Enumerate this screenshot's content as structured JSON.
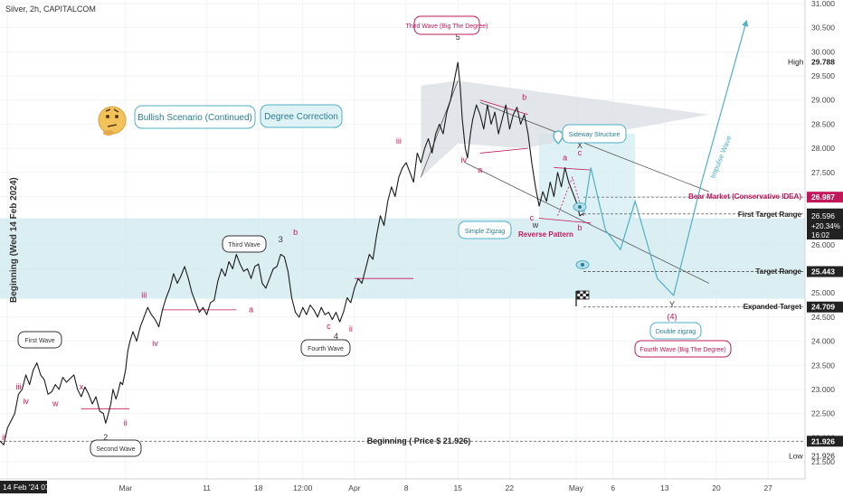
{
  "symbol_line": "Silver, 2h, CAPITALCOM",
  "y_axis_title": "Beginning (Wed 14 Feb 2024)",
  "chart_data": {
    "type": "line",
    "price_ticks": [
      31.0,
      30.5,
      30.0,
      29.5,
      29.0,
      28.5,
      28.0,
      27.5,
      27.0,
      26.5,
      26.0,
      25.5,
      25.0,
      24.5,
      24.0,
      23.5,
      23.0,
      22.5,
      22.0,
      21.5
    ],
    "price_tick_labels": [
      "31.000",
      "30.500",
      "30.000",
      "29.500",
      "29.000",
      "28.500",
      "28.000",
      "27.500",
      "27.000",
      "26.500",
      "26.000",
      "25.500",
      "25.000",
      "24.500",
      "24.000",
      "23.500",
      "23.000",
      "22.500",
      "22.000",
      "21.500"
    ],
    "ylim": [
      21.3,
      31.2
    ],
    "x_ticks": [
      {
        "label": "Feb '24",
        "day": 14
      },
      {
        "label": "Mar",
        "day": 30
      },
      {
        "label": "11",
        "day": 41
      },
      {
        "label": "18",
        "day": 48
      },
      {
        "label": "12:00",
        "day": 54
      },
      {
        "label": "Apr",
        "day": 61
      },
      {
        "label": "8",
        "day": 68
      },
      {
        "label": "15",
        "day": 75
      },
      {
        "label": "22",
        "day": 82
      },
      {
        "label": "May",
        "day": 91
      },
      {
        "label": "6",
        "day": 96
      },
      {
        "label": "13",
        "day": 103
      },
      {
        "label": "20",
        "day": 110
      },
      {
        "label": "27",
        "day": 117
      }
    ],
    "cursor_x_label": "14 Feb '24  07:00",
    "xlim": [
      13,
      122
    ],
    "price_path": [
      [
        13,
        21.93
      ],
      [
        13.5,
        21.85
      ],
      [
        14,
        22.2
      ],
      [
        15,
        22.5
      ],
      [
        15.5,
        22.9
      ],
      [
        16,
        23.0
      ],
      [
        16.5,
        23.3
      ],
      [
        17,
        23.1
      ],
      [
        17.5,
        23.4
      ],
      [
        18,
        23.55
      ],
      [
        18.5,
        23.3
      ],
      [
        19,
        23.2
      ],
      [
        19.5,
        22.9
      ],
      [
        20,
        22.95
      ],
      [
        20.5,
        23.1
      ],
      [
        21,
        23.0
      ],
      [
        21.5,
        23.25
      ],
      [
        22,
        23.15
      ],
      [
        23,
        23.3
      ],
      [
        23.5,
        23.0
      ],
      [
        24,
        22.85
      ],
      [
        24.5,
        23.05
      ],
      [
        25,
        22.9
      ],
      [
        25.5,
        22.7
      ],
      [
        26,
        22.85
      ],
      [
        26.5,
        22.55
      ],
      [
        27,
        22.5
      ],
      [
        27.3,
        22.3
      ],
      [
        27.6,
        22.45
      ],
      [
        28,
        22.7
      ],
      [
        28.3,
        23.0
      ],
      [
        28.7,
        22.8
      ],
      [
        29,
        22.95
      ],
      [
        29.3,
        23.15
      ],
      [
        29.6,
        23.1
      ],
      [
        30,
        23.4
      ],
      [
        30.3,
        23.8
      ],
      [
        30.6,
        24.0
      ],
      [
        31,
        24.2
      ],
      [
        31.5,
        24.0
      ],
      [
        32,
        24.3
      ],
      [
        32.5,
        24.5
      ],
      [
        33,
        24.7
      ],
      [
        33.5,
        24.55
      ],
      [
        34,
        24.45
      ],
      [
        34.5,
        24.3
      ],
      [
        35,
        24.65
      ],
      [
        35.5,
        24.9
      ],
      [
        36,
        25.1
      ],
      [
        36.5,
        25.4
      ],
      [
        37,
        25.2
      ],
      [
        37.5,
        25.35
      ],
      [
        38,
        25.55
      ],
      [
        38.5,
        25.3
      ],
      [
        39,
        25.0
      ],
      [
        39.5,
        24.8
      ],
      [
        40,
        24.6
      ],
      [
        40.5,
        24.7
      ],
      [
        41,
        24.55
      ],
      [
        41.5,
        24.8
      ],
      [
        42,
        24.85
      ],
      [
        42.5,
        25.25
      ],
      [
        43,
        25.5
      ],
      [
        43.5,
        25.35
      ],
      [
        44,
        25.65
      ],
      [
        44.5,
        25.5
      ],
      [
        45,
        25.8
      ],
      [
        45.5,
        25.6
      ],
      [
        46,
        25.45
      ],
      [
        46.5,
        25.5
      ],
      [
        47,
        25.3
      ],
      [
        47.5,
        25.55
      ],
      [
        48,
        25.6
      ],
      [
        48.5,
        25.2
      ],
      [
        49,
        25.1
      ],
      [
        49.5,
        25.3
      ],
      [
        50,
        25.5
      ],
      [
        50.5,
        25.55
      ],
      [
        51,
        25.8
      ],
      [
        51.5,
        25.75
      ],
      [
        52,
        25.45
      ],
      [
        52.5,
        24.9
      ],
      [
        53,
        24.6
      ],
      [
        53.5,
        24.5
      ],
      [
        54,
        24.7
      ],
      [
        54.5,
        24.55
      ],
      [
        55,
        24.75
      ],
      [
        55.5,
        24.65
      ],
      [
        56,
        24.5
      ],
      [
        56.5,
        24.7
      ],
      [
        57,
        24.55
      ],
      [
        57.5,
        24.6
      ],
      [
        58,
        24.45
      ],
      [
        58.5,
        24.6
      ],
      [
        59,
        24.4
      ],
      [
        59.5,
        24.6
      ],
      [
        60,
        24.9
      ],
      [
        60.5,
        24.8
      ],
      [
        61,
        25.1
      ],
      [
        61.5,
        25.3
      ],
      [
        62,
        25.2
      ],
      [
        62.5,
        25.5
      ],
      [
        63,
        25.8
      ],
      [
        63.5,
        25.7
      ],
      [
        64,
        26.2
      ],
      [
        64.5,
        26.6
      ],
      [
        65,
        26.4
      ],
      [
        65.5,
        26.9
      ],
      [
        66,
        27.2
      ],
      [
        66.5,
        27.0
      ],
      [
        67,
        27.4
      ],
      [
        67.5,
        27.6
      ],
      [
        68,
        27.7
      ],
      [
        68.5,
        27.5
      ],
      [
        69,
        27.3
      ],
      [
        69.5,
        27.9
      ],
      [
        70,
        27.7
      ],
      [
        70.5,
        28.0
      ],
      [
        71,
        28.2
      ],
      [
        71.5,
        27.9
      ],
      [
        72,
        28.3
      ],
      [
        72.5,
        28.5
      ],
      [
        73,
        28.3
      ],
      [
        73.5,
        28.75
      ],
      [
        74,
        29.0
      ],
      [
        74.5,
        29.4
      ],
      [
        75,
        29.78
      ],
      [
        75.3,
        29.3
      ],
      [
        75.6,
        28.6
      ],
      [
        76,
        28.0
      ],
      [
        76.3,
        27.8
      ],
      [
        76.7,
        28.3
      ],
      [
        77,
        28.6
      ],
      [
        77.5,
        28.9
      ],
      [
        78,
        28.7
      ],
      [
        78.5,
        28.4
      ],
      [
        79,
        28.9
      ],
      [
        79.5,
        28.5
      ],
      [
        80,
        28.75
      ],
      [
        80.5,
        28.3
      ],
      [
        81,
        28.6
      ],
      [
        81.5,
        28.9
      ],
      [
        82,
        28.4
      ],
      [
        82.5,
        28.7
      ],
      [
        83,
        28.85
      ],
      [
        83.5,
        28.5
      ],
      [
        84,
        28.7
      ],
      [
        84.5,
        28.3
      ],
      [
        85,
        27.7
      ],
      [
        85.5,
        27.2
      ],
      [
        86,
        26.8
      ],
      [
        86.5,
        27.1
      ],
      [
        87,
        26.9
      ],
      [
        87.5,
        27.3
      ],
      [
        88,
        27.0
      ],
      [
        88.5,
        27.5
      ],
      [
        89,
        27.2
      ],
      [
        89.5,
        27.6
      ],
      [
        90,
        27.3
      ],
      [
        90.5,
        27.1
      ],
      [
        91,
        26.9
      ],
      [
        91.5,
        26.6
      ],
      [
        92,
        26.65
      ]
    ],
    "projection_path": [
      [
        92,
        26.6
      ],
      [
        93,
        27.6
      ],
      [
        95,
        26.3
      ],
      [
        97,
        25.9
      ],
      [
        99,
        26.9
      ],
      [
        102,
        25.3
      ],
      [
        104.2,
        24.95
      ],
      [
        108,
        27.3
      ],
      [
        114,
        30.6
      ],
      [
        117,
        30.65
      ]
    ],
    "bear_market_path": [
      [
        88.5,
        26.6
      ],
      [
        90.5,
        27.4
      ],
      [
        92,
        26.6
      ]
    ],
    "levels": {
      "current": 26.596,
      "change": "+20.34%",
      "countdown": "16:02",
      "high": 29.788,
      "low": 21.926,
      "bear_market": 26.987,
      "first_target": 26.639,
      "target_range": 25.443,
      "expanded_target": 24.709,
      "beginning": 21.926
    },
    "level_labels": {
      "current": "26.596",
      "high": "29.788",
      "low": "21.926",
      "bear_market": "26.987",
      "first_target": "26.639",
      "target_range": "25.443",
      "expanded_target": "24.709",
      "beginning": "21.926",
      "high_tag": "High",
      "low_tag": "Low"
    },
    "annotations": {
      "bullish_scenario": "Bullish Scenario (Continued)",
      "degree_correction": "Degree Correction",
      "third_wave_big": "Third Wave (Big The Degree)",
      "third_wave": "Third Wave",
      "first_wave": "First Wave",
      "second_wave": "Second Wave",
      "fourth_wave": "Fourth Wave",
      "sideway_structure": "Sideway Structure",
      "simple_zigzag": "Simple Zigzag",
      "reverse_pattern": "Reverse Pattern",
      "bear_market": "Bear Market (Conservative IDEA)",
      "first_target_range": "First Target Range",
      "target_range": "Target Range",
      "expanded_target": "Expanded Target",
      "double_zigzag": "Double zigzag",
      "fourth_wave_big": "Fourth Wave (Big The Degree)",
      "impulse_wave": "Impulse Wave",
      "beginning": "Beginning ( Price $ 21.926)"
    },
    "wave_labels": [
      {
        "text": "1",
        "day": 18,
        "price": 23.85,
        "color": "#333333"
      },
      {
        "text": "2",
        "day": 27.3,
        "price": 21.95,
        "color": "#333333"
      },
      {
        "text": "3",
        "day": 51,
        "price": 26.05,
        "color": "#333333"
      },
      {
        "text": "4",
        "day": 58.5,
        "price": 24.05,
        "color": "#333333"
      },
      {
        "text": "5",
        "day": 75,
        "price": 30.25,
        "color": "#333333"
      },
      {
        "text": "(3)",
        "day": 75,
        "price": 30.45,
        "color": "#c2185b"
      },
      {
        "text": "(4)",
        "day": 104,
        "price": 24.45,
        "color": "#c2185b"
      },
      {
        "text": "iii",
        "day": 15.5,
        "price": 23.0,
        "color": "#c2185b"
      },
      {
        "text": "iv",
        "day": 16.5,
        "price": 22.7,
        "color": "#c2185b"
      },
      {
        "text": "ii",
        "day": 13.5,
        "price": 21.95,
        "color": "#c2185b"
      },
      {
        "text": "w",
        "day": 20.5,
        "price": 22.65,
        "color": "#c2185b"
      },
      {
        "text": "x",
        "day": 24,
        "price": 23.0,
        "color": "#c2185b"
      },
      {
        "text": "ii",
        "day": 30,
        "price": 22.25,
        "color": "#c2185b"
      },
      {
        "text": "iii",
        "day": 32.5,
        "price": 24.9,
        "color": "#c2185b"
      },
      {
        "text": "iv",
        "day": 34,
        "price": 23.9,
        "color": "#c2185b"
      },
      {
        "text": "a",
        "day": 47,
        "price": 24.6,
        "color": "#c2185b"
      },
      {
        "text": "b",
        "day": 53,
        "price": 26.2,
        "color": "#c2185b"
      },
      {
        "text": "c",
        "day": 57.5,
        "price": 24.25,
        "color": "#c2185b"
      },
      {
        "text": "ii",
        "day": 60.5,
        "price": 24.2,
        "color": "#c2185b"
      },
      {
        "text": "iii",
        "day": 67,
        "price": 28.1,
        "color": "#c2185b"
      },
      {
        "text": "iv",
        "day": 75.8,
        "price": 27.7,
        "color": "#c2185b"
      },
      {
        "text": "a",
        "day": 78,
        "price": 27.5,
        "color": "#c2185b"
      },
      {
        "text": "b",
        "day": 84,
        "price": 29.0,
        "color": "#c2185b"
      },
      {
        "text": "a",
        "day": 89.5,
        "price": 27.75,
        "color": "#c2185b"
      },
      {
        "text": "c",
        "day": 91.5,
        "price": 27.85,
        "color": "#c2185b"
      },
      {
        "text": "X",
        "day": 91.5,
        "price": 28.0,
        "color": "#333333"
      },
      {
        "text": "w",
        "day": 85.5,
        "price": 26.35,
        "color": "#333333"
      },
      {
        "text": "c",
        "day": 85,
        "price": 26.5,
        "color": "#c2185b"
      },
      {
        "text": "b",
        "day": 91.5,
        "price": 26.3,
        "color": "#c2185b"
      },
      {
        "text": "Y",
        "day": 104,
        "price": 24.7,
        "color": "#333333"
      }
    ],
    "grid": true
  }
}
